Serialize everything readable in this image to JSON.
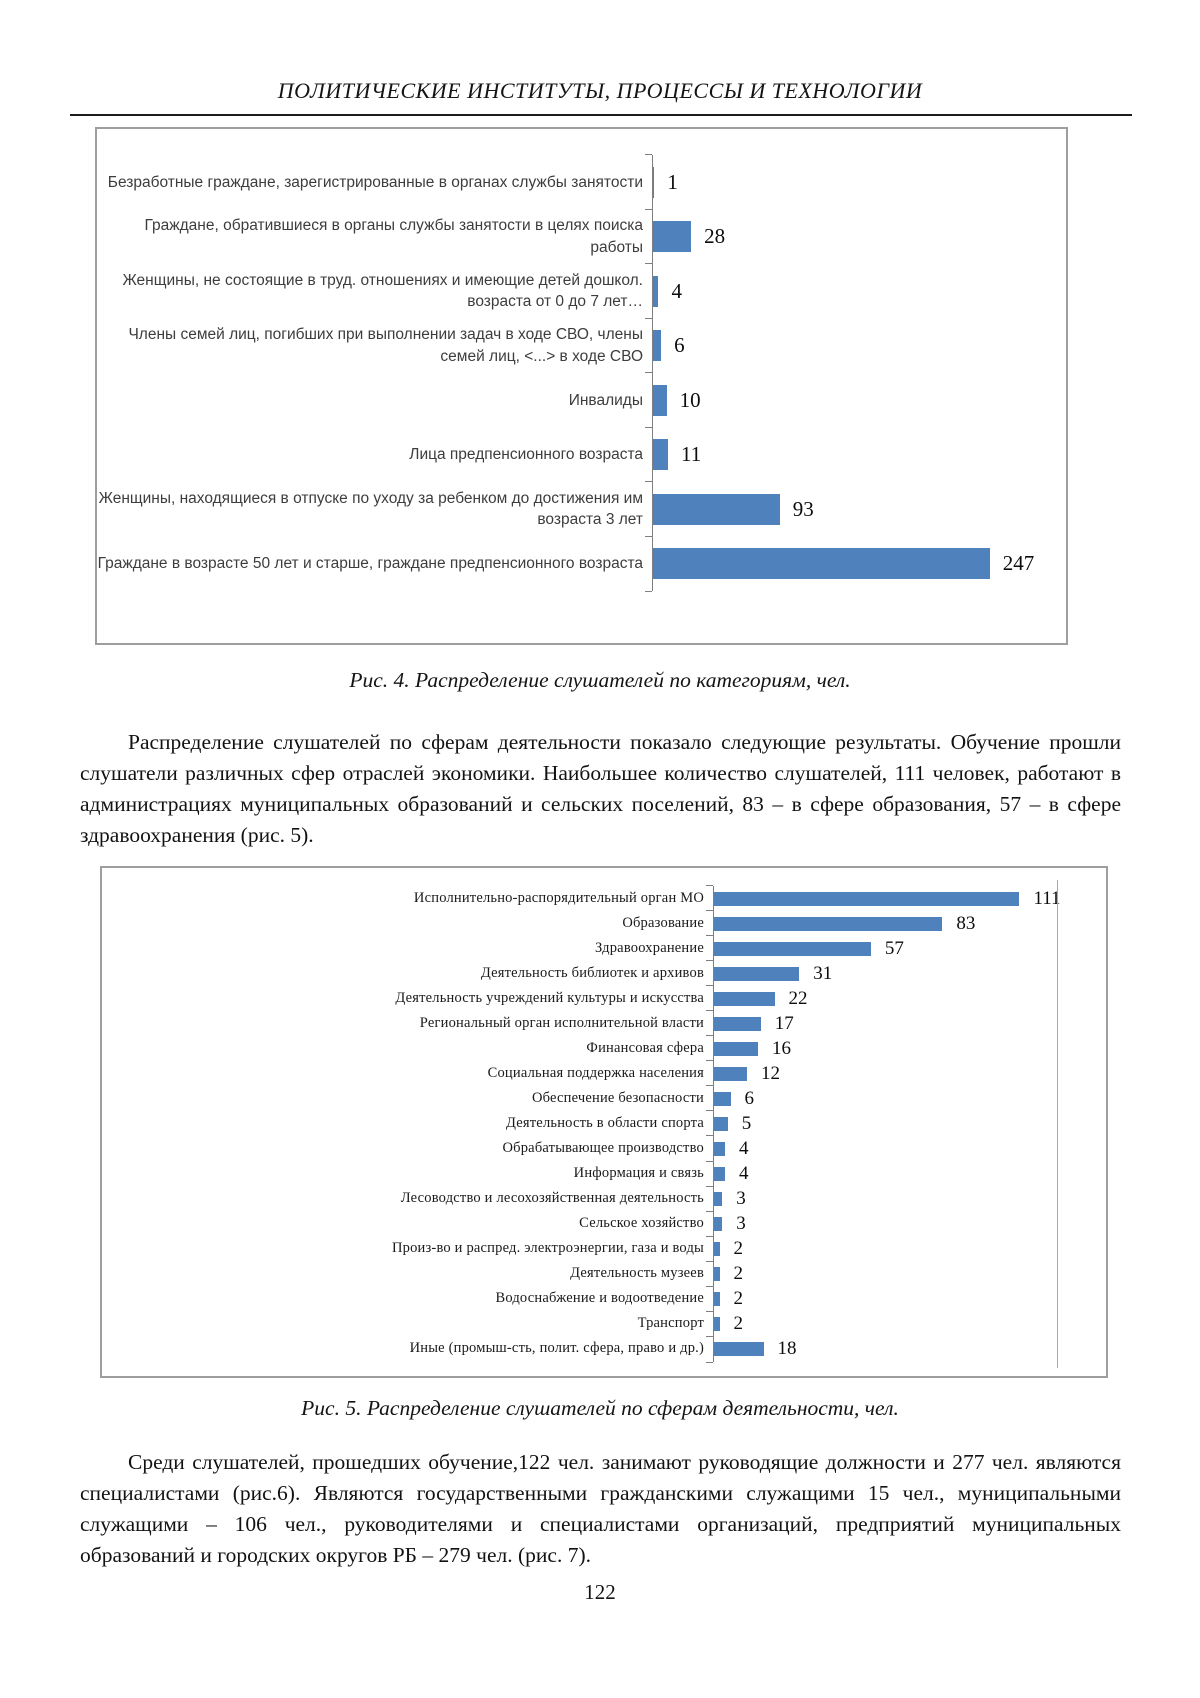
{
  "header": {
    "title": "ПОЛИТИЧЕСКИЕ ИНСТИТУТЫ, ПРОЦЕССЫ И ТЕХНОЛОГИИ"
  },
  "figures": {
    "fig4_caption": "Рис. 4. Распределение слушателей по категориям, чел.",
    "fig5_caption": "Рис. 5. Распределение слушателей по сферам деятельности, чел."
  },
  "paragraphs": {
    "p1": "Распределение слушателей по сферам деятельности показало следующие результаты. Обучение прошли слушатели различных сфер отраслей экономики. Наибольшее количество слушателей, 111 человек, работают в администрациях муниципальных образований и сельских поселений, 83 – в сфере образования, 57 – в сфере здравоохранения (рис. 5).",
    "p2": "Среди слушателей, прошедших обучение,122 чел. занимают руководящие должности и 277 чел. являются специалистами (рис.6). Являются государственными гражданскими служащими 15 чел., муниципальными служащими – 106 чел., руководителями и специалистами организаций, предприятий муниципальных образований и городских округов РБ – 279 чел. (рис. 7)."
  },
  "page_number": "122",
  "chart_data": [
    {
      "type": "bar",
      "orientation": "horizontal",
      "title": "Рис. 4. Распределение слушателей по категориям, чел.",
      "categories": [
        "Безработные граждане, зарегистрированные в органах службы занятости",
        "Граждане, обратившиеся в органы службы занятости в целях поиска работы",
        "Женщины, не состоящие в труд. отношениях и имеющие детей дошкол. возраста от 0 до 7 лет…",
        "Члены семей лиц, погибших при выполнении задач в ходе СВО, члены семей лиц, <...> в ходе СВО",
        "Инвалиды",
        "Лица предпенсионного возраста",
        "Женщины, находящиеся в отпуске по уходу за ребенком до достижения им возраста 3 лет",
        "Граждане в возрасте 50 лет и старше, граждане предпенсионного возраста"
      ],
      "values": [
        1,
        28,
        4,
        6,
        10,
        11,
        93,
        247
      ],
      "xlabel": "",
      "ylabel": "",
      "xlim": [
        0,
        300
      ],
      "grid": false,
      "legend": false,
      "data_labels": true,
      "bar_color": "#4F81BD"
    },
    {
      "type": "bar",
      "orientation": "horizontal",
      "title": "Рис. 5. Распределение слушателей по сферам деятельности, чел.",
      "categories": [
        "Исполнительно-распорядительный орган МО",
        "Образование",
        "Здравоохранение",
        "Деятельность библиотек и архивов",
        "Деятельность учреждений культуры и искусства",
        "Региональный орган исполнительной власти",
        "Финансовая сфера",
        "Социальная поддержка населения",
        "Обеспечение безопасности",
        "Деятельность в области спорта",
        "Обрабатывающее производство",
        "Информация и связь",
        "Лесоводство и лесохозяйственная деятельность",
        "Сельское хозяйство",
        "Произ-во и распред. электроэнергии, газа и воды",
        "Деятельность музеев",
        "Водоснабжение и водоотведение",
        "Транспорт",
        "Иные (промыш-сть, полит. сфера, право и др.)"
      ],
      "values": [
        111,
        83,
        57,
        31,
        22,
        17,
        16,
        12,
        6,
        5,
        4,
        4,
        3,
        3,
        2,
        2,
        2,
        2,
        18
      ],
      "xlabel": "",
      "ylabel": "",
      "xlim": [
        0,
        125
      ],
      "grid": false,
      "legend": false,
      "data_labels": true,
      "bar_color": "#4F81BD"
    }
  ]
}
